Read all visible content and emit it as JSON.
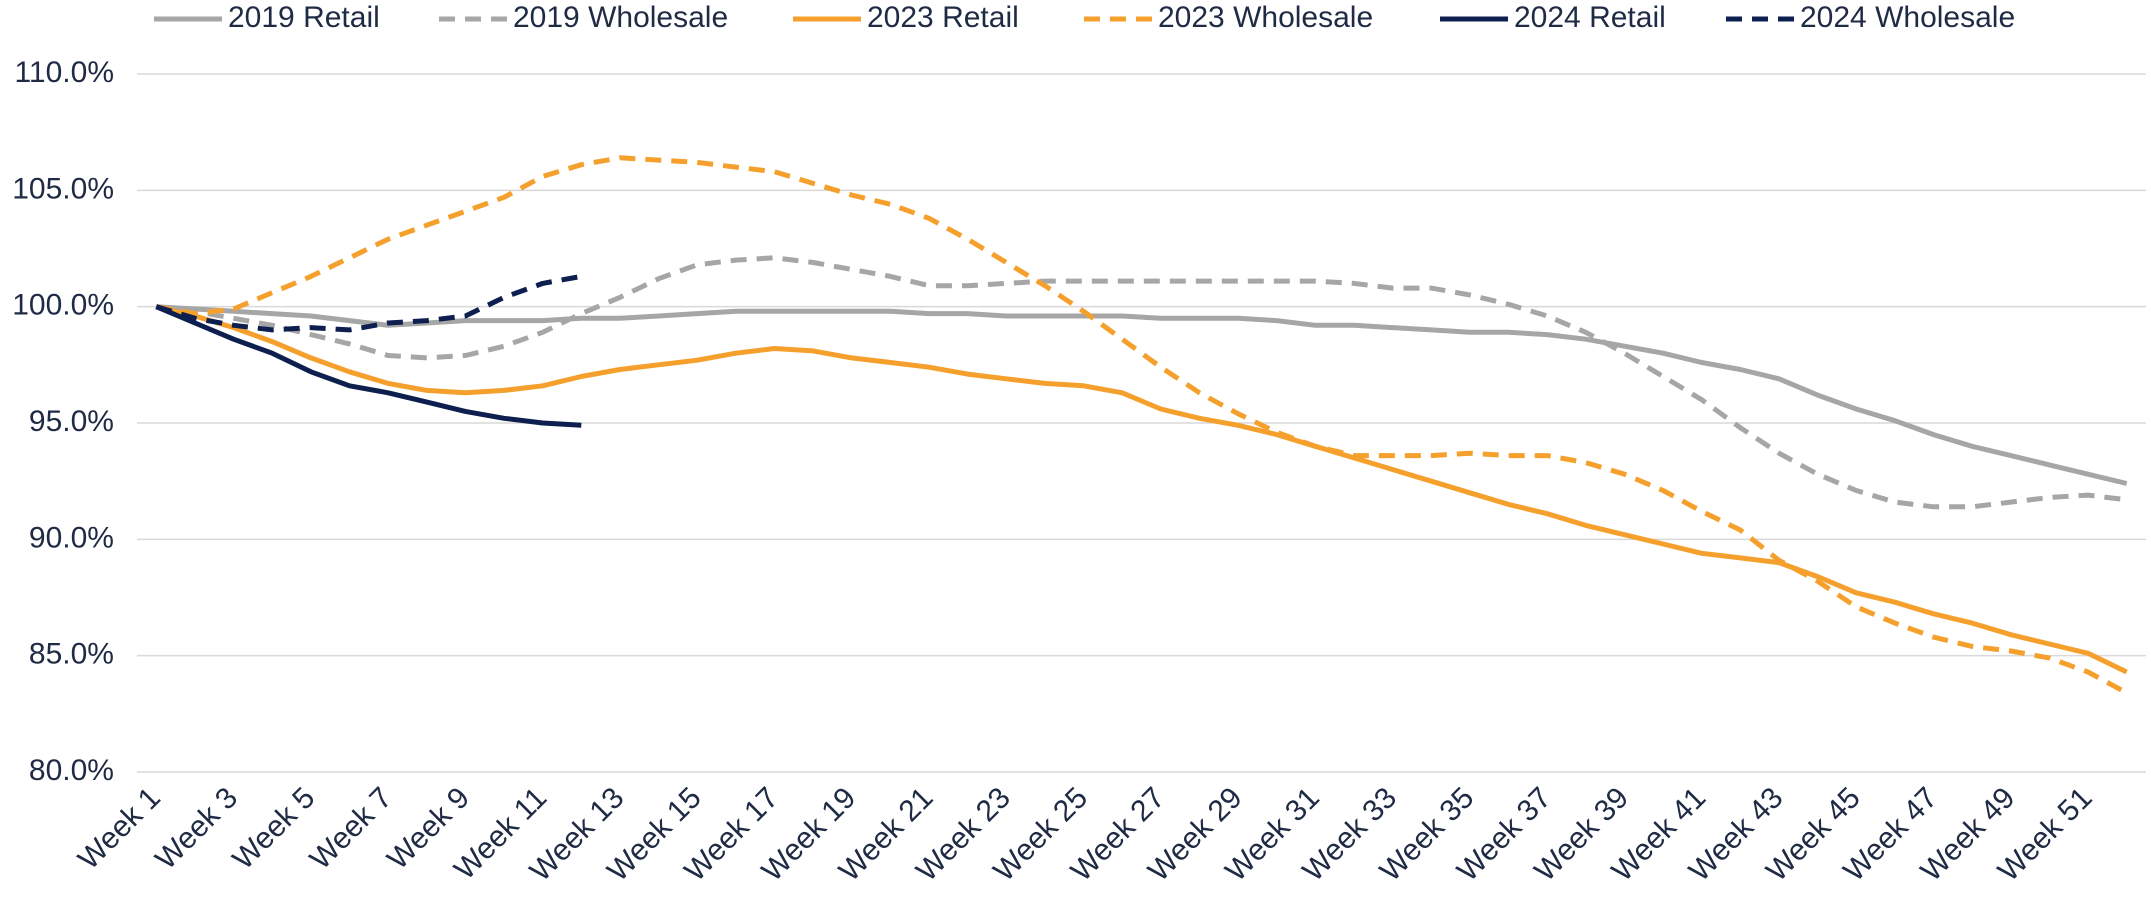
{
  "chart_data": {
    "type": "line",
    "categories": [
      "Week 1",
      null,
      "Week 3",
      null,
      "Week 5",
      null,
      "Week 7",
      null,
      "Week 9",
      null,
      "Week 11",
      null,
      "Week 13",
      null,
      "Week 15",
      null,
      "Week 17",
      null,
      "Week 19",
      null,
      "Week 21",
      null,
      "Week 23",
      null,
      "Week 25",
      null,
      "Week 27",
      null,
      "Week 29",
      null,
      "Week 31",
      null,
      "Week 33",
      null,
      "Week 35",
      null,
      "Week 37",
      null,
      "Week 39",
      null,
      "Week 41",
      null,
      "Week 43",
      null,
      "Week 45",
      null,
      "Week 47",
      null,
      "Week 49",
      null,
      "Week 51",
      null
    ],
    "series": [
      {
        "name": "2019 Retail",
        "color": "#a6a6a6",
        "dashed": false,
        "values": [
          100,
          99.9,
          99.8,
          99.7,
          99.6,
          99.4,
          99.2,
          99.3,
          99.4,
          99.4,
          99.4,
          99.5,
          99.5,
          99.6,
          99.7,
          99.8,
          99.8,
          99.8,
          99.8,
          99.8,
          99.7,
          99.7,
          99.6,
          99.6,
          99.6,
          99.6,
          99.5,
          99.5,
          99.5,
          99.4,
          99.2,
          99.2,
          99.1,
          99.0,
          98.9,
          98.9,
          98.8,
          98.6,
          98.3,
          98.0,
          97.6,
          97.3,
          96.9,
          96.2,
          95.6,
          95.1,
          94.5,
          94.0,
          93.6,
          93.2,
          92.8,
          92.4
        ]
      },
      {
        "name": "2019 Wholesale",
        "color": "#a6a6a6",
        "dashed": true,
        "values": [
          100,
          99.8,
          99.5,
          99.2,
          98.8,
          98.4,
          97.9,
          97.8,
          97.9,
          98.3,
          98.9,
          99.7,
          100.4,
          101.2,
          101.8,
          102.0,
          102.1,
          101.9,
          101.6,
          101.3,
          100.9,
          100.9,
          101.0,
          101.1,
          101.1,
          101.1,
          101.1,
          101.1,
          101.1,
          101.1,
          101.1,
          101.0,
          100.8,
          100.8,
          100.5,
          100.1,
          99.6,
          98.9,
          98.0,
          97.0,
          96.0,
          94.8,
          93.7,
          92.8,
          92.1,
          91.6,
          91.4,
          91.4,
          91.6,
          91.8,
          91.9,
          91.7
        ]
      },
      {
        "name": "2023 Retail",
        "color": "#f5a02c",
        "dashed": false,
        "values": [
          100,
          99.6,
          99.1,
          98.5,
          97.8,
          97.2,
          96.7,
          96.4,
          96.3,
          96.4,
          96.6,
          97.0,
          97.3,
          97.5,
          97.7,
          98.0,
          98.2,
          98.1,
          97.8,
          97.6,
          97.4,
          97.1,
          96.9,
          96.7,
          96.6,
          96.3,
          95.6,
          95.2,
          94.9,
          94.5,
          94.0,
          93.5,
          93.0,
          92.5,
          92.0,
          91.5,
          91.1,
          90.6,
          90.2,
          89.8,
          89.4,
          89.2,
          89.0,
          88.4,
          87.7,
          87.3,
          86.8,
          86.4,
          85.9,
          85.5,
          85.1,
          84.3
        ]
      },
      {
        "name": "2023 Wholesale",
        "color": "#f5a02c",
        "dashed": true,
        "values": [
          100,
          99.7,
          99.9,
          100.6,
          101.3,
          102.1,
          102.9,
          103.5,
          104.1,
          104.7,
          105.6,
          106.1,
          106.4,
          106.3,
          106.2,
          106.0,
          105.8,
          105.3,
          104.8,
          104.4,
          103.8,
          102.9,
          101.9,
          100.9,
          99.8,
          98.6,
          97.4,
          96.3,
          95.4,
          94.6,
          94.0,
          93.6,
          93.6,
          93.6,
          93.7,
          93.6,
          93.6,
          93.3,
          92.8,
          92.1,
          91.2,
          90.4,
          89.1,
          88.2,
          87.1,
          86.4,
          85.8,
          85.4,
          85.2,
          84.9,
          84.3,
          83.4
        ]
      },
      {
        "name": "2024 Retail",
        "color": "#0d1f4f",
        "dashed": false,
        "values": [
          100,
          99.3,
          98.6,
          98.0,
          97.2,
          96.6,
          96.3,
          95.9,
          95.5,
          95.2,
          95.0,
          94.9,
          null,
          null,
          null,
          null,
          null,
          null,
          null,
          null,
          null,
          null,
          null,
          null,
          null,
          null,
          null,
          null,
          null,
          null,
          null,
          null,
          null,
          null,
          null,
          null,
          null,
          null,
          null,
          null,
          null,
          null,
          null,
          null,
          null,
          null,
          null,
          null,
          null,
          null,
          null,
          null
        ]
      },
      {
        "name": "2024 Wholesale",
        "color": "#0d1f4f",
        "dashed": true,
        "values": [
          100,
          99.5,
          99.2,
          99.0,
          99.1,
          99.0,
          99.3,
          99.4,
          99.6,
          100.4,
          101.0,
          101.3,
          null,
          null,
          null,
          null,
          null,
          null,
          null,
          null,
          null,
          null,
          null,
          null,
          null,
          null,
          null,
          null,
          null,
          null,
          null,
          null,
          null,
          null,
          null,
          null,
          null,
          null,
          null,
          null,
          null,
          null,
          null,
          null,
          null,
          null,
          null,
          null,
          null,
          null,
          null,
          null
        ]
      }
    ],
    "ylim": [
      80,
      110
    ],
    "yticks": [
      {
        "value": 80,
        "label": "80.0%"
      },
      {
        "value": 85,
        "label": "85.0%"
      },
      {
        "value": 90,
        "label": "90.0%"
      },
      {
        "value": 95,
        "label": "95.0%"
      },
      {
        "value": 100,
        "label": "100.0%"
      },
      {
        "value": 105,
        "label": "105.0%"
      },
      {
        "value": 110,
        "label": "110.0%"
      }
    ],
    "grid": true,
    "legend": "top"
  }
}
